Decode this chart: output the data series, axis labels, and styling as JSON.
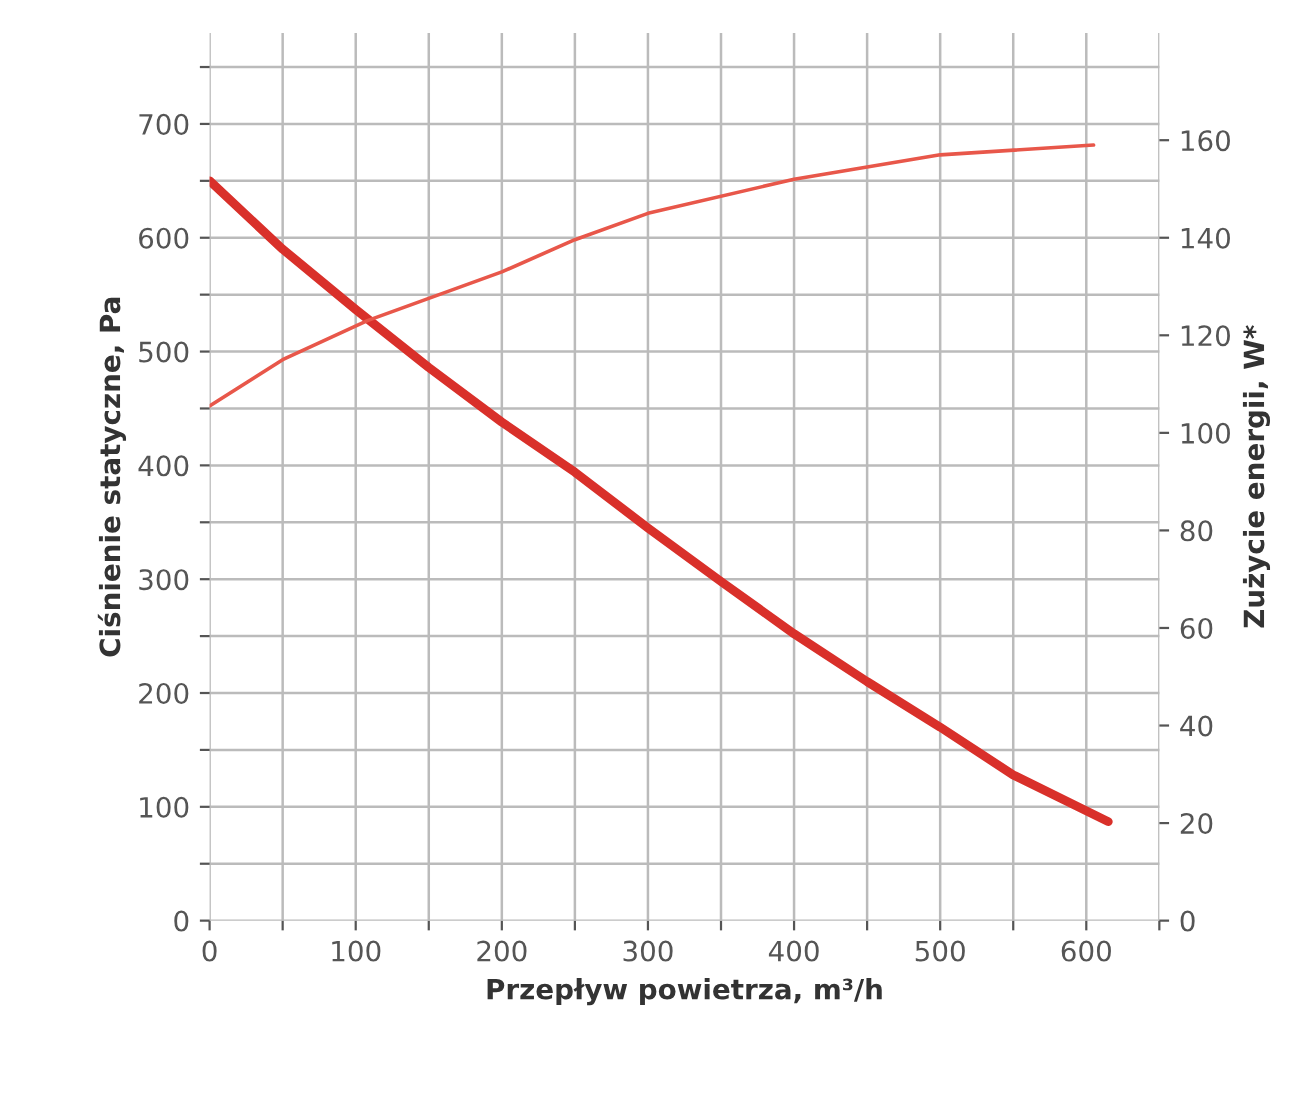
{
  "chart_data": {
    "type": "line",
    "xlabel": "Przepływ powietrza, m³/h",
    "ylabel": "Ciśnienie statyczne, Pa",
    "y2label": "Zużycie energii, W*",
    "xlim": [
      0,
      650
    ],
    "xticks": [
      0,
      {
        "value": 50,
        "label": null
      },
      100,
      {
        "value": 150,
        "label": null
      },
      200,
      {
        "value": 250,
        "label": null
      },
      300,
      {
        "value": 350,
        "label": null
      },
      400,
      {
        "value": 450,
        "label": null
      },
      500,
      {
        "value": 550,
        "label": null
      },
      600,
      {
        "value": 650,
        "label": null
      }
    ],
    "ylim": [
      0,
      780
    ],
    "yticks": [
      0,
      {
        "value": 50,
        "label": null
      },
      100,
      {
        "value": 150,
        "label": null
      },
      200,
      {
        "value": 250,
        "label": null
      },
      300,
      {
        "value": 350,
        "label": null
      },
      400,
      {
        "value": 450,
        "label": null
      },
      500,
      {
        "value": 550,
        "label": null
      },
      600,
      {
        "value": 650,
        "label": null
      },
      700,
      {
        "value": 750,
        "label": null
      }
    ],
    "y2lim": [
      0,
      182
    ],
    "y2ticks": [
      0,
      20,
      40,
      60,
      80,
      100,
      120,
      140,
      160
    ],
    "grid": true,
    "marker": "none",
    "line_style": "solid",
    "series": [
      {
        "color": "#d9302a",
        "x": [
          0,
          50,
          100,
          150,
          200,
          250,
          300,
          350,
          400,
          450,
          500,
          550,
          615
        ],
        "values": [
          650,
          590,
          537,
          486,
          438,
          394,
          345,
          298,
          252,
          210,
          170,
          128,
          87
        ]
      },
      {
        "color": "#e8574a",
        "axis": "y2",
        "x": [
          0,
          50,
          108,
          200,
          250,
          300,
          400,
          500,
          605
        ],
        "values": [
          105.5,
          115,
          123,
          133,
          139.6,
          145,
          152,
          157,
          159
        ]
      }
    ]
  }
}
